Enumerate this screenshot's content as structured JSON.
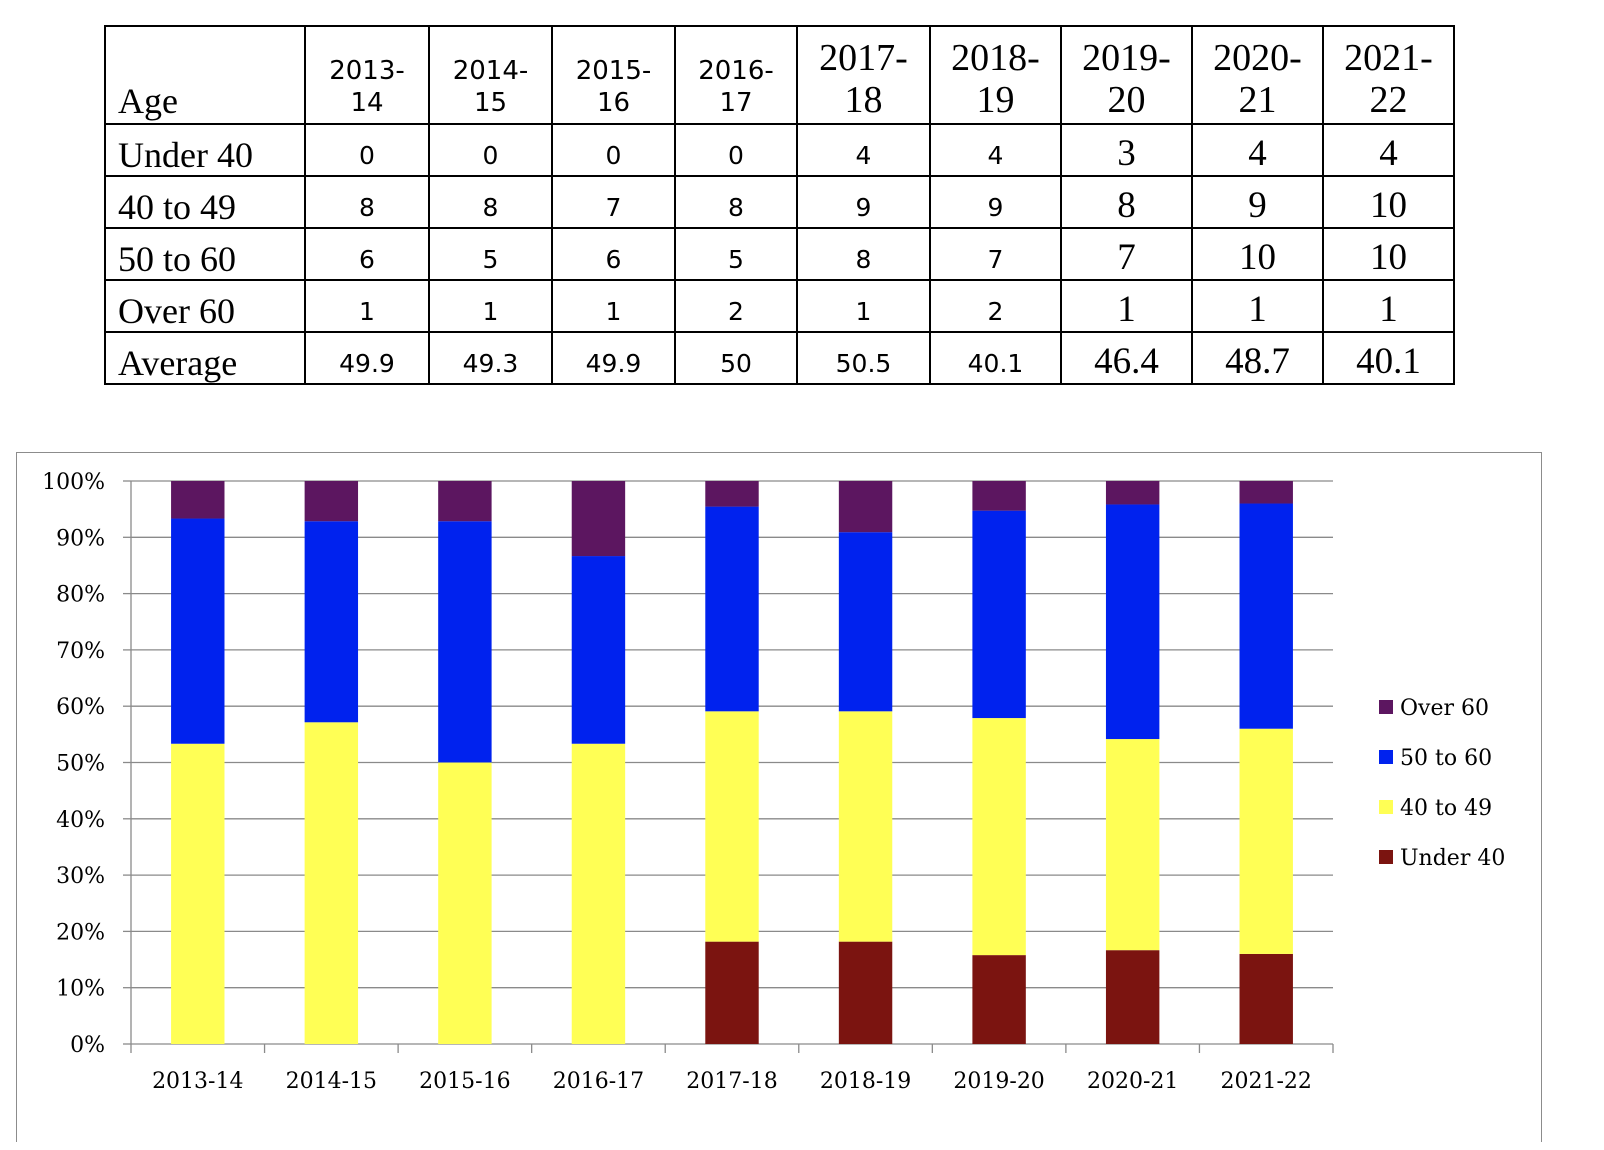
{
  "table": {
    "age_header": "Age",
    "year_headers": [
      {
        "line1": "2013-",
        "line2": "14",
        "style": "sans"
      },
      {
        "line1": "2014-",
        "line2": "15",
        "style": "sans"
      },
      {
        "line1": "2015-",
        "line2": "16",
        "style": "sans"
      },
      {
        "line1": "2016-",
        "line2": "17",
        "style": "sans"
      },
      {
        "line1": "2017-",
        "line2": "18",
        "style": "serif"
      },
      {
        "line1": "2018-",
        "line2": "19",
        "style": "serif"
      },
      {
        "line1": "2019-",
        "line2": "20",
        "style": "serif"
      },
      {
        "line1": "2020-",
        "line2": "21",
        "style": "serif"
      },
      {
        "line1": "2021-",
        "line2": "22",
        "style": "serif"
      }
    ],
    "rows": [
      {
        "label": "Under 40",
        "values": [
          "0",
          "0",
          "0",
          "0",
          "4",
          "4",
          "3",
          "4",
          "4"
        ]
      },
      {
        "label": "40 to 49",
        "values": [
          "8",
          "8",
          "7",
          "8",
          "9",
          "9",
          "8",
          "9",
          "10"
        ]
      },
      {
        "label": "50 to 60",
        "values": [
          "6",
          "5",
          "6",
          "5",
          "8",
          "7",
          "7",
          "10",
          "10"
        ]
      },
      {
        "label": "Over 60",
        "values": [
          "1",
          "1",
          "1",
          "2",
          "1",
          "2",
          "1",
          "1",
          "1"
        ]
      },
      {
        "label": "Average",
        "values": [
          "49.9",
          "49.3",
          "49.9",
          "50",
          "50.5",
          "40.1",
          "46.4",
          "48.7",
          "40.1"
        ]
      }
    ],
    "cell_styles": [
      "sans",
      "sans",
      "sans",
      "sans",
      "sans",
      "sans",
      "serif",
      "serif",
      "serif"
    ]
  },
  "chart_data": {
    "type": "bar",
    "stacked": "percent",
    "title": "",
    "xlabel": "",
    "ylabel": "",
    "categories": [
      "2013-14",
      "2014-15",
      "2015-16",
      "2016-17",
      "2017-18",
      "2018-19",
      "2019-20",
      "2020-21",
      "2021-22"
    ],
    "series": [
      {
        "name": "Under 40",
        "color": "#7b1410",
        "values": [
          0,
          0,
          0,
          0,
          4,
          4,
          3,
          4,
          4
        ]
      },
      {
        "name": "40 to 49",
        "color": "#ffff55",
        "values": [
          8,
          8,
          7,
          8,
          9,
          9,
          8,
          9,
          10
        ]
      },
      {
        "name": "50 to 60",
        "color": "#0022ee",
        "values": [
          6,
          5,
          6,
          5,
          8,
          7,
          7,
          10,
          10
        ]
      },
      {
        "name": "Over 60",
        "color": "#5c1660",
        "values": [
          1,
          1,
          1,
          2,
          1,
          2,
          1,
          1,
          1
        ]
      }
    ],
    "ylim": [
      0,
      100
    ],
    "yticks": [
      "0%",
      "10%",
      "20%",
      "30%",
      "40%",
      "50%",
      "60%",
      "70%",
      "80%",
      "90%",
      "100%"
    ],
    "grid": true,
    "legend_position": "right",
    "legend_order": [
      "Over 60",
      "50 to 60",
      "40 to 49",
      "Under 40"
    ]
  }
}
